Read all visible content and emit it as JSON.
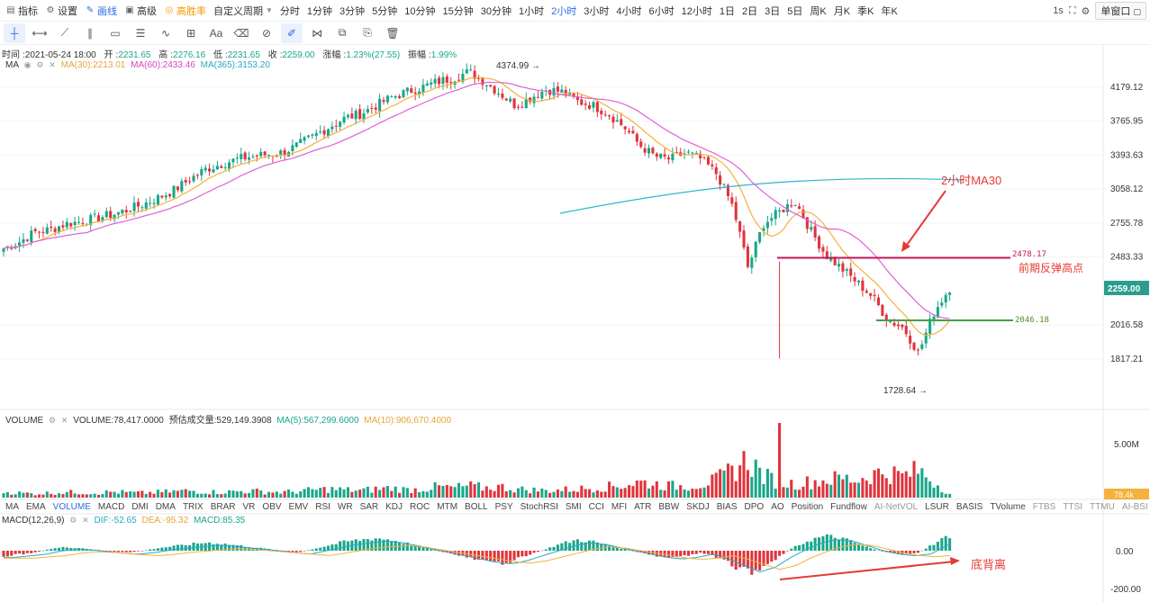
{
  "toolbar": {
    "left_items": [
      {
        "icon": "indicator-icon",
        "glyph": "▤",
        "label": "指标"
      },
      {
        "icon": "gear-icon",
        "glyph": "⚙",
        "label": "设置"
      },
      {
        "icon": "pen-icon",
        "glyph": "✎",
        "label": "画线"
      },
      {
        "icon": "advanced-icon",
        "glyph": "▣",
        "label": "高级"
      },
      {
        "icon": "winrate-icon",
        "glyph": "◎",
        "label": "高胜率"
      }
    ],
    "custom_period": "自定义周期",
    "periods": [
      "分时",
      "1分钟",
      "3分钟",
      "5分钟",
      "10分钟",
      "15分钟",
      "30分钟",
      "1小时",
      "2小时",
      "3小时",
      "4小时",
      "6小时",
      "12小时",
      "1日",
      "2日",
      "3日",
      "5日",
      "周K",
      "月K",
      "季K",
      "年K"
    ],
    "active_period": "2小时",
    "right": {
      "interval": "1s",
      "window": "单窗口"
    }
  },
  "drawtools": [
    "crosshair-icon",
    "segment-icon",
    "ray-icon",
    "parallel-icon",
    "rectangle-icon",
    "fib-icon",
    "wave-icon",
    "measure-icon",
    "text-icon",
    "eraser-icon",
    "magnet-icon",
    "brush-icon",
    "pattern-icon",
    "lock-icon",
    "copy-icon",
    "trash-icon"
  ],
  "ohlc": {
    "time_label": "时间",
    "time": "2021-05-24 18:00",
    "open_label": "开",
    "open": "2231.65",
    "high_label": "高",
    "high": "2276.16",
    "low_label": "低",
    "low": "2231.65",
    "close_label": "收",
    "close": "2259.00",
    "change_label": "涨幅",
    "change": "1.23%(27.55)",
    "amp_label": "振幅",
    "amp": "1.99%"
  },
  "ma_legend": {
    "name": "MA",
    "ma30": "MA(30):2213.01",
    "ma60": "MA(60):2433.46",
    "ma365": "MA(365):3153.20"
  },
  "volume_legend": {
    "name": "VOLUME",
    "vol": "VOLUME:78,417.0000",
    "est": "预估成交量:529,149.3908",
    "ma5": "MA(5):567,299.6000",
    "ma10": "MA(10):906,670.4000"
  },
  "macd_legend": {
    "name": "MACD(12,26,9)",
    "dif": "DIF:-52.65",
    "dea": "DEA:-95.32",
    "macd": "MACD:85.35"
  },
  "indicator_tabs": [
    "MA",
    "EMA",
    "VOLUME",
    "MACD",
    "DMI",
    "DMA",
    "TRIX",
    "BRAR",
    "VR",
    "OBV",
    "EMV",
    "RSI",
    "WR",
    "SAR",
    "KDJ",
    "ROC",
    "MTM",
    "BOLL",
    "PSY",
    "StochRSI",
    "SMI",
    "CCI",
    "MFI",
    "ATR",
    "BBW",
    "SKDJ",
    "BIAS",
    "DPO",
    "AO",
    "Position",
    "Fundflow",
    "AI-NetVOL",
    "LSUR",
    "BASIS",
    "TVolume",
    "FTBS",
    "TTSI",
    "TTMU",
    "AI-BSI"
  ],
  "active_indicator_tab": "VOLUME",
  "colors": {
    "up": "#1aa68a",
    "down": "#e0343c",
    "ma30": "#f5b13c",
    "ma60": "#e060d4",
    "ma365": "#2fb4d1",
    "accent": "#2d6cdf"
  },
  "chart_data": {
    "type": "candlestick",
    "price_axis_ticks": [
      "4179.12",
      "3765.95",
      "3393.63",
      "3058.12",
      "2755.78",
      "2483.33",
      "2259.00",
      "2016.58",
      "1817.21"
    ],
    "current_price": "2259.00",
    "annotations": {
      "high_label": "4374.99",
      "low_label": "1728.64",
      "ma30_note": "2小时MA30",
      "resistance_value": "2478.17",
      "resistance_note": "前期反弹高点",
      "support_value": "2046.18",
      "divergence_note": "底背离"
    },
    "volume_axis_ticks": [
      "5.00M"
    ],
    "volume_current": "78.4k",
    "macd_axis_ticks": [
      "0.00",
      "-200.00"
    ],
    "price_path": [
      2550,
      2600,
      2680,
      2700,
      2750,
      2770,
      2800,
      2830,
      2870,
      2920,
      2980,
      3050,
      3150,
      3250,
      3300,
      3350,
      3380,
      3400,
      3420,
      3500,
      3600,
      3700,
      3800,
      3850,
      3950,
      4050,
      4120,
      4180,
      4250,
      4300,
      4380,
      4250,
      4100,
      3950,
      4050,
      4150,
      4120,
      4000,
      3950,
      3850,
      3700,
      3500,
      3380,
      3350,
      3420,
      3350,
      3200,
      2900,
      2400,
      2750,
      2850,
      2950,
      2700,
      2500,
      2400,
      2300,
      2200,
      2050,
      2000,
      1850,
      2100,
      2259
    ],
    "volume_path": [
      0.15,
      0.12,
      0.1,
      0.12,
      0.14,
      0.13,
      0.12,
      0.15,
      0.13,
      0.12,
      0.14,
      0.16,
      0.18,
      0.15,
      0.14,
      0.16,
      0.17,
      0.15,
      0.14,
      0.16,
      0.2,
      0.22,
      0.2,
      0.18,
      0.22,
      0.25,
      0.2,
      0.22,
      0.28,
      0.25,
      0.3,
      0.25,
      0.28,
      0.22,
      0.2,
      0.18,
      0.2,
      0.22,
      0.25,
      0.28,
      0.32,
      0.4,
      0.35,
      0.3,
      0.3,
      0.35,
      0.45,
      0.7,
      1.0,
      0.55,
      0.4,
      0.35,
      0.4,
      0.45,
      0.5,
      0.45,
      0.6,
      0.65,
      0.55,
      0.7,
      0.4,
      0.1
    ],
    "macd_hist_path": [
      -30,
      -20,
      -10,
      10,
      20,
      15,
      5,
      -5,
      -10,
      0,
      15,
      25,
      35,
      45,
      40,
      30,
      20,
      10,
      0,
      -10,
      10,
      30,
      50,
      60,
      70,
      60,
      40,
      20,
      0,
      -20,
      -40,
      -60,
      -70,
      -50,
      -20,
      10,
      40,
      60,
      50,
      30,
      10,
      -10,
      -30,
      -40,
      -30,
      -10,
      -40,
      -80,
      -120,
      -90,
      -30,
      20,
      60,
      80,
      70,
      40,
      10,
      -10,
      -20,
      -10,
      40,
      85
    ]
  }
}
